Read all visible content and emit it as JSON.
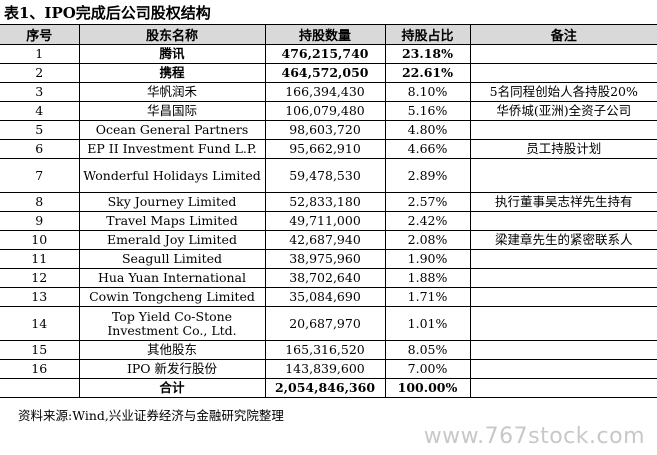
{
  "title": "表1、IPO完成后公司股权结构",
  "headers": {
    "no": "序号",
    "name": "股东名称",
    "shares": "持股数量",
    "ratio": "持股占比",
    "note": "备注"
  },
  "rows": [
    {
      "no": "1",
      "name": "腾讯",
      "shares": "476,215,740",
      "ratio": "23.18%",
      "note": ""
    },
    {
      "no": "2",
      "name": "携程",
      "shares": "464,572,050",
      "ratio": "22.61%",
      "note": ""
    },
    {
      "no": "3",
      "name": "华帆润禾",
      "shares": "166,394,430",
      "ratio": "8.10%",
      "note": "5名同程创始人各持股20%"
    },
    {
      "no": "4",
      "name": "华昌国际",
      "shares": "106,079,480",
      "ratio": "5.16%",
      "note": "华侨城(亚洲)全资子公司"
    },
    {
      "no": "5",
      "name": "Ocean General Partners",
      "shares": "98,603,720",
      "ratio": "4.80%",
      "note": ""
    },
    {
      "no": "6",
      "name": "EP II Investment Fund L.P.",
      "shares": "95,662,910",
      "ratio": "4.66%",
      "note": "员工持股计划"
    },
    {
      "no": "7",
      "name": "Wonderful Holidays Limited",
      "shares": "59,478,530",
      "ratio": "2.89%",
      "note": ""
    },
    {
      "no": "8",
      "name": "Sky Journey Limited",
      "shares": "52,833,180",
      "ratio": "2.57%",
      "note": "执行董事吴志祥先生持有"
    },
    {
      "no": "9",
      "name": "Travel Maps Limited",
      "shares": "49,711,000",
      "ratio": "2.42%",
      "note": ""
    },
    {
      "no": "10",
      "name": "Emerald Joy Limited",
      "shares": "42,687,940",
      "ratio": "2.08%",
      "note": "梁建章先生的紧密联系人"
    },
    {
      "no": "11",
      "name": "Seagull Limited",
      "shares": "38,975,960",
      "ratio": "1.90%",
      "note": ""
    },
    {
      "no": "12",
      "name": "Hua Yuan International",
      "shares": "38,702,640",
      "ratio": "1.88%",
      "note": ""
    },
    {
      "no": "13",
      "name": "Cowin Tongcheng Limited",
      "shares": "35,084,690",
      "ratio": "1.71%",
      "note": ""
    },
    {
      "no": "14",
      "name": "Top Yield Co-Stone Investment Co., Ltd.",
      "shares": "20,687,970",
      "ratio": "1.01%",
      "note": ""
    },
    {
      "no": "15",
      "name": "其他股东",
      "shares": "165,316,520",
      "ratio": "8.05%",
      "note": ""
    },
    {
      "no": "16",
      "name": "IPO 新发行股份",
      "shares": "143,839,600",
      "ratio": "7.00%",
      "note": ""
    }
  ],
  "total": {
    "label": "合计",
    "shares": "2,054,846,360",
    "ratio": "100.00%"
  },
  "source": "资料来源:Wind,兴业证券经济与金融研究院整理",
  "watermark": "www.767stock.com"
}
